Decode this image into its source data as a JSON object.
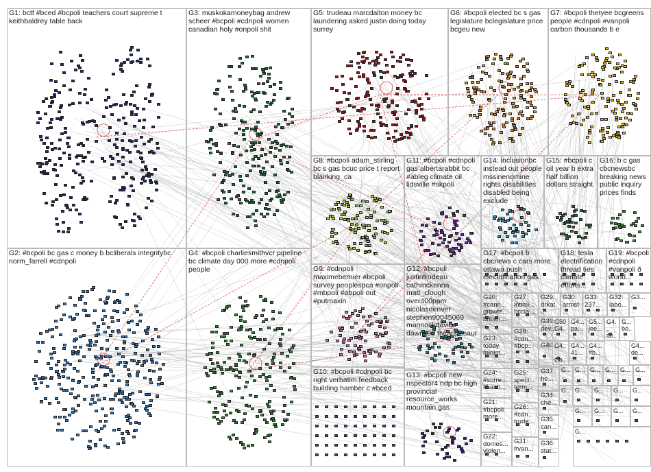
{
  "groups": [
    {
      "id": "G1",
      "label": "G1: bctf #bced #bcpoli teachers court supreme t keithbaldrey table back",
      "color": "#1a2a6c"
    },
    {
      "id": "G2",
      "label": "G2: #bcpoli bc gas c money b bcliberals integritybc norm_farrell #cdnpoli",
      "color": "#2f7ac0"
    },
    {
      "id": "G3",
      "label": "G3: muskokamoneybag andrew scheer #bcpoli #cdnpoli women canadian holy #onpoli shit",
      "color": "#1f6b3a"
    },
    {
      "id": "G4",
      "label": "G4: #bcpoli charliesmithvcr pipeline bc climate day 000 more #cdnpoli people",
      "color": "#2b8a2b"
    },
    {
      "id": "G5",
      "label": "G5: trudeau marcdalton money bc laundering asked justin doing today surrey",
      "color": "#a0151c"
    },
    {
      "id": "G6",
      "label": "G6: #bcpoli elected bc s gas legislature bclegislature price bcgeu new",
      "color": "#d8912f"
    },
    {
      "id": "G7",
      "label": "G7: #bcpoli thetyee bcgreens people #cdnpoli #vanpoli carbon thousands b e",
      "color": "#e2b821"
    },
    {
      "id": "G8",
      "label": "G8: #bcpoli adam_stirling bc s gas bcuc price t report blairking_ca",
      "color": "#a9c83c"
    },
    {
      "id": "G9",
      "label": "G9: #cdnpoli maximebernier #bcpoli survey peoplespca #onpoli #mbpoli #abpoli out #putmaxin",
      "color": "#d36aa8"
    },
    {
      "id": "G10",
      "label": "G10: #bcpoli #cdnpoli bc right verbatim feedback building hamber c #bced",
      "color": "#6a3d7a"
    },
    {
      "id": "G11",
      "label": "G11: #bcpoli #cdnpoli gas albertarabbit bc #ableg climate oil lidsville #skpoli",
      "color": "#6b1fa0"
    },
    {
      "id": "G12",
      "label": "G12: #bcpoli justintrudeau cathmckenna matt_clough over400ppm nicolasdenver stephen90045069 mannockdavid dawntj90 ttyrannosaur",
      "color": "#2a7f8f"
    },
    {
      "id": "G13",
      "label": "G13: #bcpoli new nspector4 ndp bc high provincial resource_works mountain gas",
      "color": "#2a2a7a"
    },
    {
      "id": "G14",
      "label": "G14: inclusionbc instead out people mssinenomine rights disabilities disabled being exclude",
      "color": "#3a8fc0"
    },
    {
      "id": "G15",
      "label": "G15: #bcpoli c oil year b extra half billion dollars straight",
      "color": "#2a6f3a"
    },
    {
      "id": "G16",
      "label": "G16: b c gas cbcnewsbc breaking news public inquiry prices finds",
      "color": "#3a8a3a"
    },
    {
      "id": "G17",
      "label": "G17: #bcpoli b cbcnews c cars more ottawa push electrification gas",
      "color": "#555555"
    },
    {
      "id": "G18",
      "label": "G18: tesla electrification thread ties climate efforts...",
      "color": "#555555"
    },
    {
      "id": "G19",
      "label": "G19: #bcpoli #cdnpoli #vanpoli ð world...",
      "color": "#555555"
    },
    {
      "id": "G20",
      "label": "G20: #cann... growte... british...",
      "color": "#555555"
    },
    {
      "id": "G21",
      "label": "G21: #bcpoli more...",
      "color": "#555555"
    },
    {
      "id": "G22",
      "label": "G22: domes... violen...",
      "color": "#555555"
    },
    {
      "id": "G23",
      "label": "G23: today minist...",
      "color": "#555555"
    },
    {
      "id": "G24",
      "label": "G24: #surre... #kash...",
      "color": "#555555"
    },
    {
      "id": "G25",
      "label": "G25: speci... term...",
      "color": "#555555"
    },
    {
      "id": "G26",
      "label": "G26: #cdn... trude...",
      "color": "#555555"
    },
    {
      "id": "G27",
      "label": "G27: intimi... bccla...",
      "color": "#555555"
    },
    {
      "id": "G28",
      "label": "G28: #cdn... #bcp...",
      "color": "#555555"
    },
    {
      "id": "G29",
      "label": "G29: drkat...",
      "color": "#555555"
    },
    {
      "id": "G30",
      "label": "G30: armst...",
      "color": "#555555"
    },
    {
      "id": "G31",
      "label": "G31: #van...",
      "color": "#555555"
    },
    {
      "id": "G32",
      "label": "G32: labo...",
      "color": "#555555"
    },
    {
      "id": "G33",
      "label": "G33: 237...",
      "color": "#555555"
    },
    {
      "id": "G34",
      "label": "G34: che...",
      "color": "#555555"
    },
    {
      "id": "G35",
      "label": "G35: can...",
      "color": "#555555"
    },
    {
      "id": "G36",
      "label": "G36: stat...",
      "color": "#555555"
    },
    {
      "id": "G37",
      "label": "G37: he...",
      "color": "#555555"
    },
    {
      "id": "G38",
      "label": "G3...",
      "color": "#555555"
    },
    {
      "id": "G39",
      "label": "G39: dev...",
      "color": "#555555"
    },
    {
      "id": "G40",
      "label": "G40",
      "color": "#555555"
    },
    {
      "id": "G41",
      "label": "G...",
      "color": "#555555"
    },
    {
      "id": "G42",
      "label": "G...",
      "color": "#555555"
    },
    {
      "id": "G43",
      "label": "G4... cla...",
      "color": "#555555"
    },
    {
      "id": "G44",
      "label": "G4... pa...",
      "color": "#555555"
    },
    {
      "id": "G45",
      "label": "G4... 41...",
      "color": "#555555"
    },
    {
      "id": "G46",
      "label": "G5... joe...",
      "color": "#555555"
    },
    {
      "id": "G47",
      "label": "G4... #b...",
      "color": "#555555"
    },
    {
      "id": "G48",
      "label": "G4... do...",
      "color": "#555555"
    },
    {
      "id": "G49",
      "label": "G... bo...",
      "color": "#555555"
    },
    {
      "id": "G50",
      "label": "G50 G4...",
      "color": "#555555"
    },
    {
      "id": "G51",
      "label": "G4... de...",
      "color": "#555555"
    },
    {
      "id": "G52",
      "label": "G...",
      "color": "#555555"
    },
    {
      "id": "G53",
      "label": "G...",
      "color": "#555555"
    },
    {
      "id": "G54",
      "label": "G...",
      "color": "#555555"
    },
    {
      "id": "G55",
      "label": "G...",
      "color": "#555555"
    },
    {
      "id": "G56",
      "label": "G...",
      "color": "#555555"
    },
    {
      "id": "G57",
      "label": "G...",
      "color": "#555555"
    },
    {
      "id": "G58",
      "label": "G...",
      "color": "#555555"
    },
    {
      "id": "G59",
      "label": "G...",
      "color": "#555555"
    },
    {
      "id": "G60",
      "label": "G...",
      "color": "#555555"
    },
    {
      "id": "G61",
      "label": "G...",
      "color": "#555555"
    },
    {
      "id": "G62",
      "label": "G...",
      "color": "#555555"
    },
    {
      "id": "G63",
      "label": "G...",
      "color": "#555555"
    },
    {
      "id": "G64",
      "label": "G...",
      "color": "#555555"
    },
    {
      "id": "G65",
      "label": "G...",
      "color": "#555555"
    }
  ],
  "colors": {
    "edge": "#9a9a9a",
    "reciprocal_edge": "#cc2222",
    "panel_border": "#b9b9b9",
    "label_text": "#1c1c1c"
  }
}
